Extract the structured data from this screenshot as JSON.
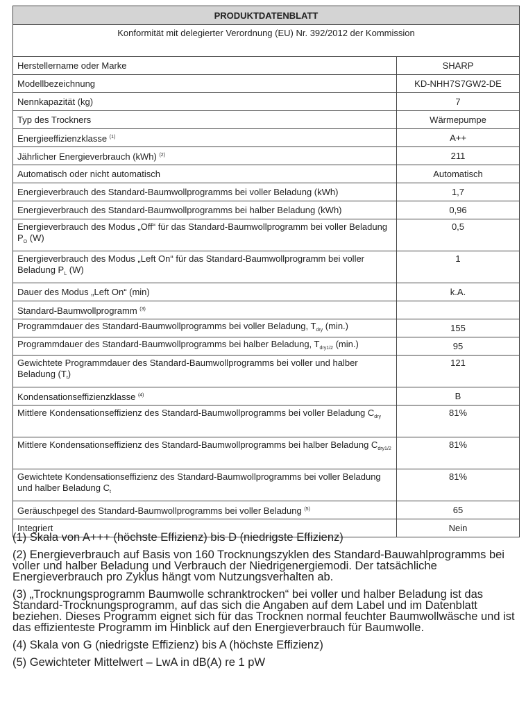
{
  "header": {
    "title": "PRODUKTDATENBLATT",
    "compliance": "Konformität mit delegierter Verordnung (EU) Nr. 392/2012 der Kommission"
  },
  "rows": [
    {
      "label": "Herstellername oder Marke",
      "value": "SHARP"
    },
    {
      "label": "Modellbezeichnung",
      "value": "KD-NHH7S7GW2-DE"
    },
    {
      "label": "Nennkapazität (kg)",
      "value": "7"
    },
    {
      "label": "Typ des Trockners",
      "value": "Wärmepumpe"
    },
    {
      "label": "Energieeffizienzklasse ",
      "sup": "(1)",
      "value": "A++"
    },
    {
      "label": "Jährlicher Energieverbrauch (kWh) ",
      "sup": "(2)",
      "value": "211"
    },
    {
      "label": "Automatisch oder nicht automatisch",
      "value": "Automatisch"
    },
    {
      "label": "Energieverbrauch des Standard-Baumwollprogramms bei voller Beladung (kWh)",
      "value": "1,7"
    },
    {
      "label": "Energieverbrauch des Standard-Baumwollprogramms bei halber Beladung (kWh)",
      "value": "0,96"
    },
    {
      "label": "Energieverbrauch des Modus „Off“ für das Standard-Baumwollprogramm bei voller Beladung P",
      "sub": "O",
      "suffix": " (W)",
      "value": "0,5",
      "two": true
    },
    {
      "label": "Energieverbrauch des Modus „Left On“ für das Standard-Baumwollprogramm bei voller Beladung P",
      "sub": "L",
      "suffix": " (W)",
      "value": "1",
      "two": true
    },
    {
      "label": "Dauer des Modus „Left On“ (min)",
      "value": "k.A."
    },
    {
      "label": "Standard-Baumwollprogramm ",
      "sup": "(3)",
      "value": ""
    },
    {
      "label": "Programmdauer des Standard-Baumwollprogramms bei voller Beladung, T",
      "sub": "dry",
      "suffix": " (min.)",
      "value": "155"
    },
    {
      "label": "Programmdauer des Standard-Baumwollprogramms bei halber Beladung, T",
      "sub": "dry1/2",
      "suffix": " (min.)",
      "value": "95"
    },
    {
      "label": "Gewichtete Programmdauer des Standard-Baumwollprogramms bei voller und halber Beladung (T",
      "sub": "t",
      "suffix": ")",
      "value": "121",
      "two": true
    },
    {
      "label": "Kondensationseffizienzklasse ",
      "sup": "(4)",
      "value": "B"
    },
    {
      "label": "Mittlere Kondensationseffizienz des Standard-Baumwollprogramms bei voller Beladung C",
      "sub": "dry",
      "value": "81%",
      "two": true
    },
    {
      "label": "Mittlere Kondensationseffizienz des Standard-Baumwollprogramms bei halber Beladung C",
      "sub": "dry1/2",
      "value": "81%",
      "two": true
    },
    {
      "label": "Gewichtete Kondensationseffizienz des Standard-Baumwollprogramms bei voller Beladung und halber Beladung C",
      "sub": "t",
      "value": "81%",
      "two": true
    },
    {
      "label": "Geräuschpegel des Standard-Baumwollprogramms bei voller Beladung ",
      "sup": "(5)",
      "value": "65"
    },
    {
      "label": "Integriert",
      "value": "Nein"
    }
  ],
  "footnotes": [
    "(1) Skala von A+++ (höchste Effizienz) bis D (niedrigste Effizienz)",
    "(2) Energieverbrauch auf Basis von 160 Trocknungszyklen des Standard-Bauwahlprogramms bei voller und halber Beladung und Verbrauch der Niedrigenergiemodi. Der tatsächliche Energieverbrauch pro Zyklus hängt vom Nutzungsverhalten ab.",
    "(3) „Trocknungsprogramm Baumwolle schranktrocken“ bei voller und halber Beladung ist das Standard-Trocknungsprogramm, auf das sich die Angaben auf dem Label und im Datenblatt beziehen. Dieses Programm eignet sich für das Trocknen normal feuchter Baumwollwäsche und ist das effizienteste Programm im Hinblick auf den Energieverbrauch für Baumwolle.",
    "(4) Skala von G (niedrigste Effizienz) bis A (höchste Effizienz)",
    "(5) Gewichteter Mittelwert – LwA in dB(A) re 1 pW"
  ]
}
